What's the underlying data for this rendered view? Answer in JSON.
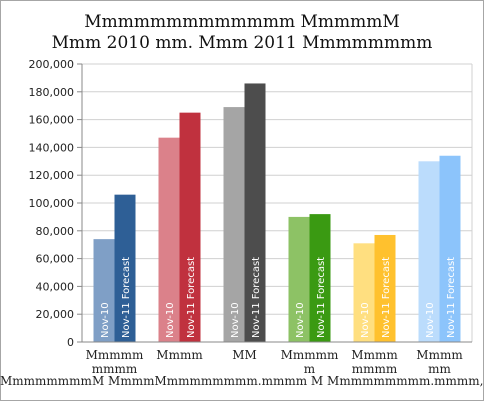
{
  "chart_data": {
    "type": "bar",
    "title": [
      "Mmmmmmmmmmmmm MmmmmM",
      "Mmm 2010 mm. Mmm 2011 Mmmmmmmm"
    ],
    "categories": [
      [
        "Mmmmm",
        "mmmm"
      ],
      [
        "Mmmm"
      ],
      [
        "MM"
      ],
      [
        "Mmmmm",
        "m"
      ],
      [
        "Mmmm",
        "mmmm"
      ],
      [
        "Mmmm",
        "mm"
      ]
    ],
    "series": [
      {
        "name": "Nov-10",
        "values": [
          74000,
          147000,
          169000,
          90000,
          71000,
          130000
        ],
        "colors": [
          "#7f9fc6",
          "#db818a",
          "#a5a5a5",
          "#8dc265",
          "#ffdf80",
          "#bbdcfc"
        ]
      },
      {
        "name": "Nov-11 Forecast",
        "values": [
          106000,
          165000,
          186000,
          92000,
          77000,
          134000
        ],
        "colors": [
          "#2e5f96",
          "#c0313e",
          "#4d4d4d",
          "#3a9a12",
          "#ffc12e",
          "#8cc4fb"
        ]
      }
    ],
    "ylim": [
      0,
      200000
    ],
    "yticks": [
      0,
      20000,
      40000,
      60000,
      80000,
      100000,
      120000,
      140000,
      160000,
      180000,
      200000
    ],
    "ytick_labels": [
      "0",
      "20,000",
      "40,000",
      "60,000",
      "80,000",
      "100,000",
      "120,000",
      "140,000",
      "160,000",
      "180,000",
      "200,000"
    ],
    "grid": true,
    "legend": "none"
  },
  "bottom_text": "MmmmmmmmM MmmmMmmmmmmmm.mmmm M Mmmmmmmmm.mmmm, Mmmm"
}
